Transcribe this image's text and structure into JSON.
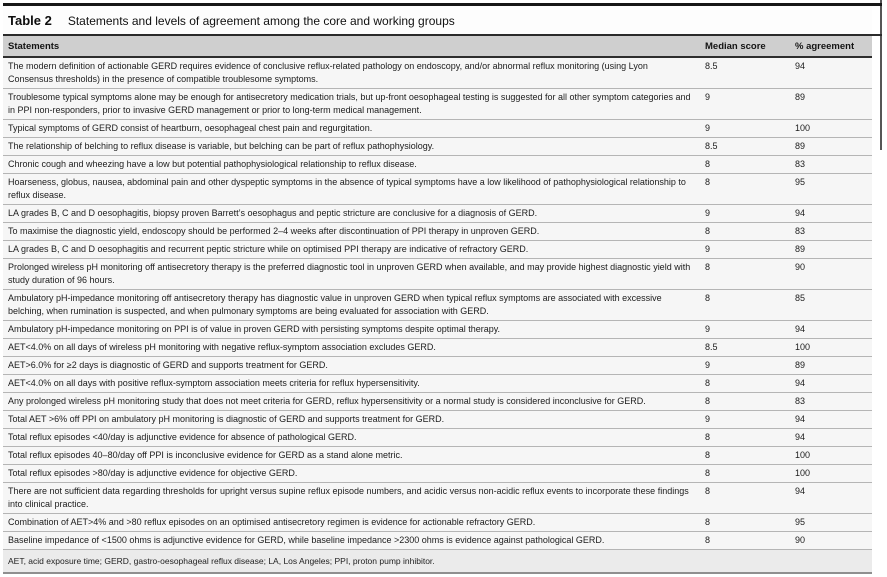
{
  "table": {
    "label": "Table 2",
    "title": "Statements and levels of agreement among the core and working groups",
    "columns": {
      "statements": "Statements",
      "median": "Median score",
      "agreement": "% agreement"
    },
    "rows": [
      {
        "statement": "The modern definition of actionable GERD requires evidence of conclusive reflux-related pathology on endoscopy, and/or abnormal reflux monitoring (using Lyon Consensus thresholds) in the presence of compatible troublesome symptoms.",
        "median": "8.5",
        "agreement": "94"
      },
      {
        "statement": "Troublesome typical symptoms alone may be enough for antisecretory medication trials, but up-front oesophageal testing is suggested for all other symptom categories and in PPI non-responders, prior to invasive GERD management or prior to long-term medical management.",
        "median": "9",
        "agreement": "89"
      },
      {
        "statement": "Typical symptoms of GERD consist of heartburn, oesophageal chest pain and regurgitation.",
        "median": "9",
        "agreement": "100"
      },
      {
        "statement": "The relationship of belching to reflux disease is variable, but belching can be part of reflux pathophysiology.",
        "median": "8.5",
        "agreement": "89"
      },
      {
        "statement": "Chronic cough and wheezing have a low but potential pathophysiological relationship to reflux disease.",
        "median": "8",
        "agreement": "83"
      },
      {
        "statement": "Hoarseness, globus, nausea, abdominal pain and other dyspeptic symptoms in the absence of typical symptoms have a low likelihood of pathophysiological relationship to reflux disease.",
        "median": "8",
        "agreement": "95"
      },
      {
        "statement": "LA grades B, C and D oesophagitis, biopsy proven Barrett’s oesophagus and peptic stricture are conclusive for a diagnosis of GERD.",
        "median": "9",
        "agreement": "94"
      },
      {
        "statement": "To maximise the diagnostic yield, endoscopy should be performed 2–4 weeks after discontinuation of PPI therapy in unproven GERD.",
        "median": "8",
        "agreement": "83"
      },
      {
        "statement": "LA grades B, C and D oesophagitis and recurrent peptic stricture while on optimised PPI therapy are indicative of refractory GERD.",
        "median": "9",
        "agreement": "89"
      },
      {
        "statement": "Prolonged wireless pH monitoring off antisecretory therapy is the preferred diagnostic tool in unproven GERD when available, and may provide highest diagnostic yield with study duration of 96 hours.",
        "median": "8",
        "agreement": "90"
      },
      {
        "statement": "Ambulatory pH-impedance monitoring off antisecretory therapy has diagnostic value in unproven GERD when typical reflux symptoms are associated with excessive belching, when rumination is suspected, and when pulmonary symptoms are being evaluated for association with GERD.",
        "median": "8",
        "agreement": "85"
      },
      {
        "statement": "Ambulatory pH-impedance monitoring on PPI is of value in proven GERD with persisting symptoms despite optimal therapy.",
        "median": "9",
        "agreement": "94"
      },
      {
        "statement": "AET<4.0% on all days of wireless pH monitoring with negative reflux-symptom association excludes GERD.",
        "median": "8.5",
        "agreement": "100"
      },
      {
        "statement": "AET>6.0% for ≥2 days is diagnostic of GERD and supports treatment for GERD.",
        "median": "9",
        "agreement": "89"
      },
      {
        "statement": "AET<4.0% on all days with positive reflux-symptom association meets criteria for reflux hypersensitivity.",
        "median": "8",
        "agreement": "94"
      },
      {
        "statement": "Any prolonged wireless pH monitoring study that does not meet criteria for GERD, reflux hypersensitivity or a normal study is considered inconclusive for GERD.",
        "median": "8",
        "agreement": "83"
      },
      {
        "statement": "Total AET >6% off PPI on ambulatory pH monitoring is diagnostic of GERD and supports treatment for GERD.",
        "median": "9",
        "agreement": "94"
      },
      {
        "statement": "Total reflux episodes <40/day is adjunctive evidence for absence of pathological GERD.",
        "median": "8",
        "agreement": "94"
      },
      {
        "statement": "Total reflux episodes 40–80/day off PPI is inconclusive evidence for GERD as a stand alone metric.",
        "median": "8",
        "agreement": "100"
      },
      {
        "statement": "Total reflux episodes >80/day is adjunctive evidence for objective GERD.",
        "median": "8",
        "agreement": "100"
      },
      {
        "statement": "There are not sufficient data regarding thresholds for upright versus supine reflux episode numbers, and acidic versus non-acidic reflux events to incorporate these findings into clinical practice.",
        "median": "8",
        "agreement": "94"
      },
      {
        "statement": "Combination of AET>4% and >80 reflux episodes on an optimised antisecretory regimen is evidence for actionable refractory GERD.",
        "median": "8",
        "agreement": "95"
      },
      {
        "statement": "Baseline impedance of <1500 ohms is adjunctive evidence for GERD, while baseline impedance >2300 ohms is evidence against pathological GERD.",
        "median": "8",
        "agreement": "90"
      }
    ],
    "footnote": "AET, acid exposure time; GERD, gastro-oesophageal reflux disease; LA, Los Angeles; PPI, proton pump inhibitor."
  }
}
